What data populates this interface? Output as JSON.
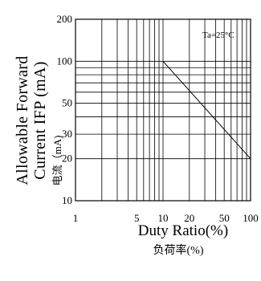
{
  "chart_data": {
    "type": "line",
    "x_scale": "log",
    "y_scale": "log",
    "xlim": [
      1,
      100
    ],
    "ylim": [
      10,
      200
    ],
    "grid": true,
    "x_ticks": [
      {
        "value": 1,
        "label": "1"
      },
      {
        "value": 5,
        "label": "5"
      },
      {
        "value": 10,
        "label": "10"
      },
      {
        "value": 20,
        "label": "20"
      },
      {
        "value": 50,
        "label": "50"
      },
      {
        "value": 100,
        "label": "100"
      }
    ],
    "y_ticks": [
      {
        "value": 10,
        "label": "10"
      },
      {
        "value": 20,
        "label": "20"
      },
      {
        "value": 30,
        "label": "30"
      },
      {
        "value": 50,
        "label": "50"
      },
      {
        "value": 100,
        "label": "100"
      },
      {
        "value": 200,
        "label": "200"
      }
    ],
    "x_gridlines": [
      2,
      3,
      4,
      5,
      6,
      7,
      8,
      9,
      10,
      20,
      30,
      40,
      50,
      60,
      70,
      80,
      90
    ],
    "y_gridlines": [
      20,
      30,
      40,
      50,
      60,
      70,
      80,
      90,
      100
    ],
    "series": [
      {
        "x": [
          10,
          100
        ],
        "y": [
          100,
          20
        ]
      }
    ],
    "ylabel_line1": "Allowable Forward",
    "ylabel_line2": "Current IFP (mA)",
    "ylabel_zh": "电流（mA)",
    "xlabel": "Duty Ratio(%)",
    "xlabel_zh": "负荷率(%)",
    "annotation": "Ta=25°C"
  }
}
